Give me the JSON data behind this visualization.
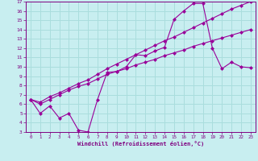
{
  "xlabel": "Windchill (Refroidissement éolien,°C)",
  "bg_color": "#c8eef0",
  "line_color": "#990099",
  "grid_color": "#aadddd",
  "xlim": [
    -0.5,
    23.5
  ],
  "ylim": [
    3,
    17
  ],
  "xticks": [
    0,
    1,
    2,
    3,
    4,
    5,
    6,
    7,
    8,
    9,
    10,
    11,
    12,
    13,
    14,
    15,
    16,
    17,
    18,
    19,
    20,
    21,
    22,
    23
  ],
  "yticks": [
    3,
    4,
    5,
    6,
    7,
    8,
    9,
    10,
    11,
    12,
    13,
    14,
    15,
    16,
    17
  ],
  "line1_x": [
    0,
    1,
    2,
    3,
    4,
    5,
    6,
    7,
    8,
    9,
    10,
    11,
    12,
    13,
    14,
    15,
    16,
    17,
    18,
    19,
    20,
    21,
    22,
    23
  ],
  "line1_y": [
    6.5,
    5.0,
    5.8,
    4.5,
    5.0,
    3.2,
    3.0,
    6.5,
    9.4,
    9.5,
    10.0,
    11.3,
    11.2,
    11.7,
    12.1,
    15.1,
    16.0,
    16.8,
    16.8,
    12.0,
    9.8,
    10.5,
    10.0,
    9.9
  ],
  "line2_x": [
    0,
    1,
    2,
    3,
    4,
    5,
    6,
    7,
    8,
    9,
    10,
    11,
    12,
    13,
    14,
    15,
    16,
    17,
    18,
    19,
    20,
    21,
    22,
    23
  ],
  "line2_y": [
    6.5,
    6.0,
    6.5,
    7.0,
    7.5,
    7.9,
    8.2,
    8.7,
    9.2,
    9.5,
    9.8,
    10.2,
    10.5,
    10.8,
    11.2,
    11.5,
    11.8,
    12.2,
    12.5,
    12.8,
    13.1,
    13.4,
    13.7,
    14.0
  ],
  "line3_x": [
    0,
    1,
    2,
    3,
    4,
    5,
    6,
    7,
    8,
    9,
    10,
    11,
    12,
    13,
    14,
    15,
    16,
    17,
    18,
    19,
    20,
    21,
    22,
    23
  ],
  "line3_y": [
    6.5,
    6.2,
    6.8,
    7.2,
    7.7,
    8.2,
    8.6,
    9.2,
    9.8,
    10.3,
    10.8,
    11.3,
    11.8,
    12.3,
    12.8,
    13.2,
    13.7,
    14.2,
    14.7,
    15.2,
    15.7,
    16.2,
    16.6,
    17.0
  ],
  "tick_color": "#800080",
  "axis_color": "#800080",
  "font_family": "monospace"
}
